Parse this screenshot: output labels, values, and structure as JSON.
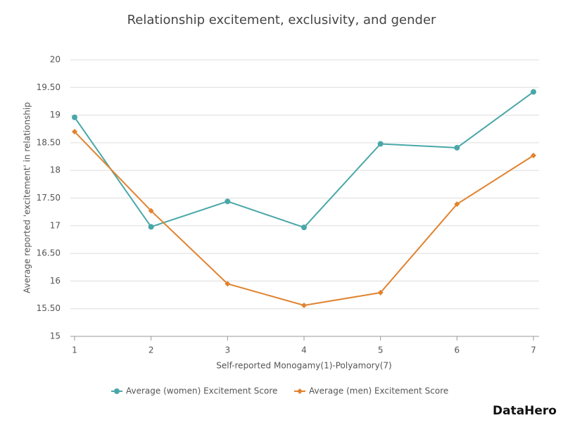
{
  "chart_data": {
    "type": "line",
    "title": "Relationship excitement, exclusivity, and gender",
    "xlabel": "Self-reported Monogamy(1)-Polyamory(7)",
    "ylabel": "Average reported 'excitement' in relationship",
    "x": [
      1,
      2,
      3,
      4,
      5,
      6,
      7
    ],
    "series": [
      {
        "name": "Average (women) Excitement Score",
        "color": "#4aa7a8",
        "marker": "circle",
        "values": [
          18.96,
          16.98,
          17.44,
          16.97,
          18.48,
          18.41,
          19.42
        ]
      },
      {
        "name": "Average (men) Excitement Score",
        "color": "#e0832f",
        "marker": "diamond",
        "values": [
          18.7,
          17.27,
          15.95,
          15.56,
          15.79,
          17.39,
          18.27
        ]
      }
    ],
    "xlim": [
      1,
      7
    ],
    "xticks": [
      1,
      2,
      3,
      4,
      5,
      6,
      7
    ],
    "ylim": [
      15,
      20
    ],
    "yticks": [
      15,
      {
        "value": 15.5,
        "label": "15.50"
      },
      16,
      {
        "value": 16.5,
        "label": "16.50"
      },
      17,
      {
        "value": 17.5,
        "label": "17.50"
      },
      18,
      {
        "value": 18.5,
        "label": "18.50"
      },
      19,
      {
        "value": 19.5,
        "label": "19.50"
      },
      20
    ],
    "grid": true,
    "legend": "bottom",
    "logo": "DataHero"
  }
}
